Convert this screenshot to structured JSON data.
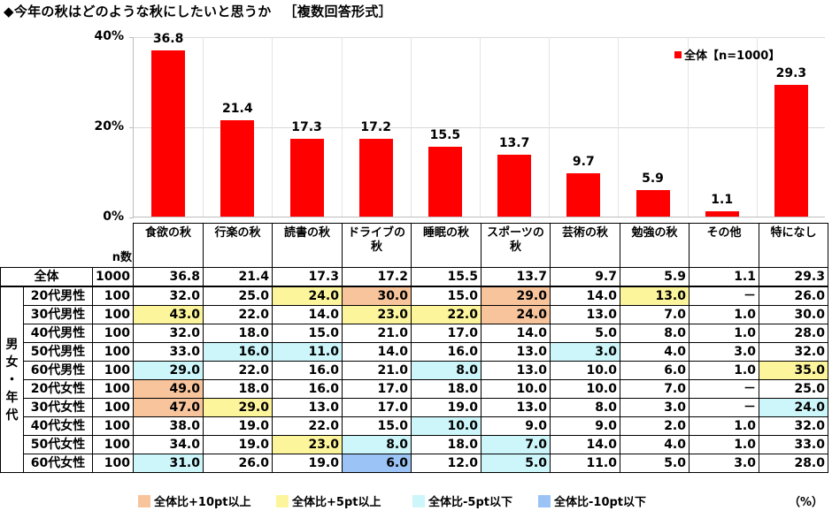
{
  "title": {
    "main": "◆今年の秋はどのような秋にしたいと思うか",
    "sub": "［複数回答形式］"
  },
  "chart_data": {
    "type": "bar",
    "title": "今年の秋はどのような秋にしたいと思うか［複数回答形式］",
    "categories": [
      "食欲の秋",
      "行楽の秋",
      "読書の秋",
      "ドライブの秋",
      "睡眠の秋",
      "スポーツの秋",
      "芸術の秋",
      "勉強の秋",
      "その他",
      "特になし"
    ],
    "series": [
      {
        "name": "全体【n=1000】",
        "color": "#ff0000",
        "values": [
          36.8,
          21.4,
          17.3,
          17.2,
          15.5,
          13.7,
          9.7,
          5.9,
          1.1,
          29.3
        ]
      }
    ],
    "xlabel": "",
    "ylabel": "",
    "ylim": [
      0,
      40
    ],
    "yticks": [
      "0%",
      "20%",
      "40%"
    ],
    "grid": true,
    "legend_position": "top-right",
    "value_labels": [
      "36.8",
      "21.4",
      "17.3",
      "17.2",
      "15.5",
      "13.7",
      "9.7",
      "5.9",
      "1.1",
      "29.3"
    ]
  },
  "legend": {
    "label": "全体【n=1000】"
  },
  "table": {
    "n_header": "n数",
    "side_label": "男女・年代",
    "columns": [
      "食欲の秋",
      "行楽の秋",
      "読書の秋",
      "ドライブの秋",
      "睡眠の秋",
      "スポーツの秋",
      "芸術の秋",
      "勉強の秋",
      "その他",
      "特になし"
    ],
    "total": {
      "label": "全体",
      "n": "1000",
      "values": [
        "36.8",
        "21.4",
        "17.3",
        "17.2",
        "15.5",
        "13.7",
        "9.7",
        "5.9",
        "1.1",
        "29.3"
      ]
    },
    "rows": [
      {
        "label": "20代男性",
        "n": "100",
        "values": [
          "32.0",
          "25.0",
          "24.0",
          "30.0",
          "15.0",
          "29.0",
          "14.0",
          "13.0",
          "－",
          "26.0"
        ],
        "highlights": [
          "",
          "",
          "plus5",
          "plus10",
          "",
          "plus10",
          "",
          "plus5",
          "",
          ""
        ]
      },
      {
        "label": "30代男性",
        "n": "100",
        "values": [
          "43.0",
          "22.0",
          "14.0",
          "23.0",
          "22.0",
          "24.0",
          "13.0",
          "7.0",
          "1.0",
          "30.0"
        ],
        "highlights": [
          "plus5",
          "",
          "",
          "plus5",
          "plus5",
          "plus10",
          "",
          "",
          "",
          ""
        ]
      },
      {
        "label": "40代男性",
        "n": "100",
        "values": [
          "32.0",
          "18.0",
          "15.0",
          "21.0",
          "17.0",
          "14.0",
          "5.0",
          "8.0",
          "1.0",
          "28.0"
        ],
        "highlights": [
          "",
          "",
          "",
          "",
          "",
          "",
          "",
          "",
          "",
          ""
        ]
      },
      {
        "label": "50代男性",
        "n": "100",
        "values": [
          "33.0",
          "16.0",
          "11.0",
          "14.0",
          "16.0",
          "13.0",
          "3.0",
          "4.0",
          "3.0",
          "32.0"
        ],
        "highlights": [
          "",
          "minus5",
          "minus5",
          "",
          "",
          "",
          "minus5",
          "",
          "",
          ""
        ]
      },
      {
        "label": "60代男性",
        "n": "100",
        "values": [
          "29.0",
          "22.0",
          "16.0",
          "21.0",
          "8.0",
          "13.0",
          "10.0",
          "6.0",
          "1.0",
          "35.0"
        ],
        "highlights": [
          "minus5",
          "",
          "",
          "",
          "minus5",
          "",
          "",
          "",
          "",
          "plus5"
        ]
      },
      {
        "label": "20代女性",
        "n": "100",
        "values": [
          "49.0",
          "18.0",
          "16.0",
          "17.0",
          "18.0",
          "10.0",
          "10.0",
          "7.0",
          "－",
          "25.0"
        ],
        "highlights": [
          "plus10",
          "",
          "",
          "",
          "",
          "",
          "",
          "",
          "",
          ""
        ]
      },
      {
        "label": "30代女性",
        "n": "100",
        "values": [
          "47.0",
          "29.0",
          "13.0",
          "17.0",
          "19.0",
          "13.0",
          "8.0",
          "3.0",
          "－",
          "24.0"
        ],
        "highlights": [
          "plus10",
          "plus5",
          "",
          "",
          "",
          "",
          "",
          "",
          "",
          "minus5"
        ]
      },
      {
        "label": "40代女性",
        "n": "100",
        "values": [
          "38.0",
          "19.0",
          "22.0",
          "15.0",
          "10.0",
          "9.0",
          "9.0",
          "2.0",
          "1.0",
          "32.0"
        ],
        "highlights": [
          "",
          "",
          "",
          "",
          "minus5",
          "",
          "",
          "",
          "",
          ""
        ]
      },
      {
        "label": "50代女性",
        "n": "100",
        "values": [
          "34.0",
          "19.0",
          "23.0",
          "8.0",
          "18.0",
          "7.0",
          "14.0",
          "4.0",
          "1.0",
          "33.0"
        ],
        "highlights": [
          "",
          "",
          "plus5",
          "minus5",
          "",
          "minus5",
          "",
          "",
          "",
          ""
        ]
      },
      {
        "label": "60代女性",
        "n": "100",
        "values": [
          "31.0",
          "26.0",
          "19.0",
          "6.0",
          "12.0",
          "5.0",
          "11.0",
          "5.0",
          "3.0",
          "28.0"
        ],
        "highlights": [
          "minus5",
          "",
          "",
          "minus10",
          "",
          "minus5",
          "",
          "",
          "",
          ""
        ]
      }
    ]
  },
  "color_key": [
    {
      "id": "plus10",
      "label": "全体比+10pt以上",
      "color": "#f8c49c"
    },
    {
      "id": "plus5",
      "label": "全体比+5pt以上",
      "color": "#fdf59c"
    },
    {
      "id": "minus5",
      "label": "全体比-5pt以下",
      "color": "#cdf6fb"
    },
    {
      "id": "minus10",
      "label": "全体比-10pt以下",
      "color": "#9cc3f5"
    }
  ],
  "unit": "（%）"
}
